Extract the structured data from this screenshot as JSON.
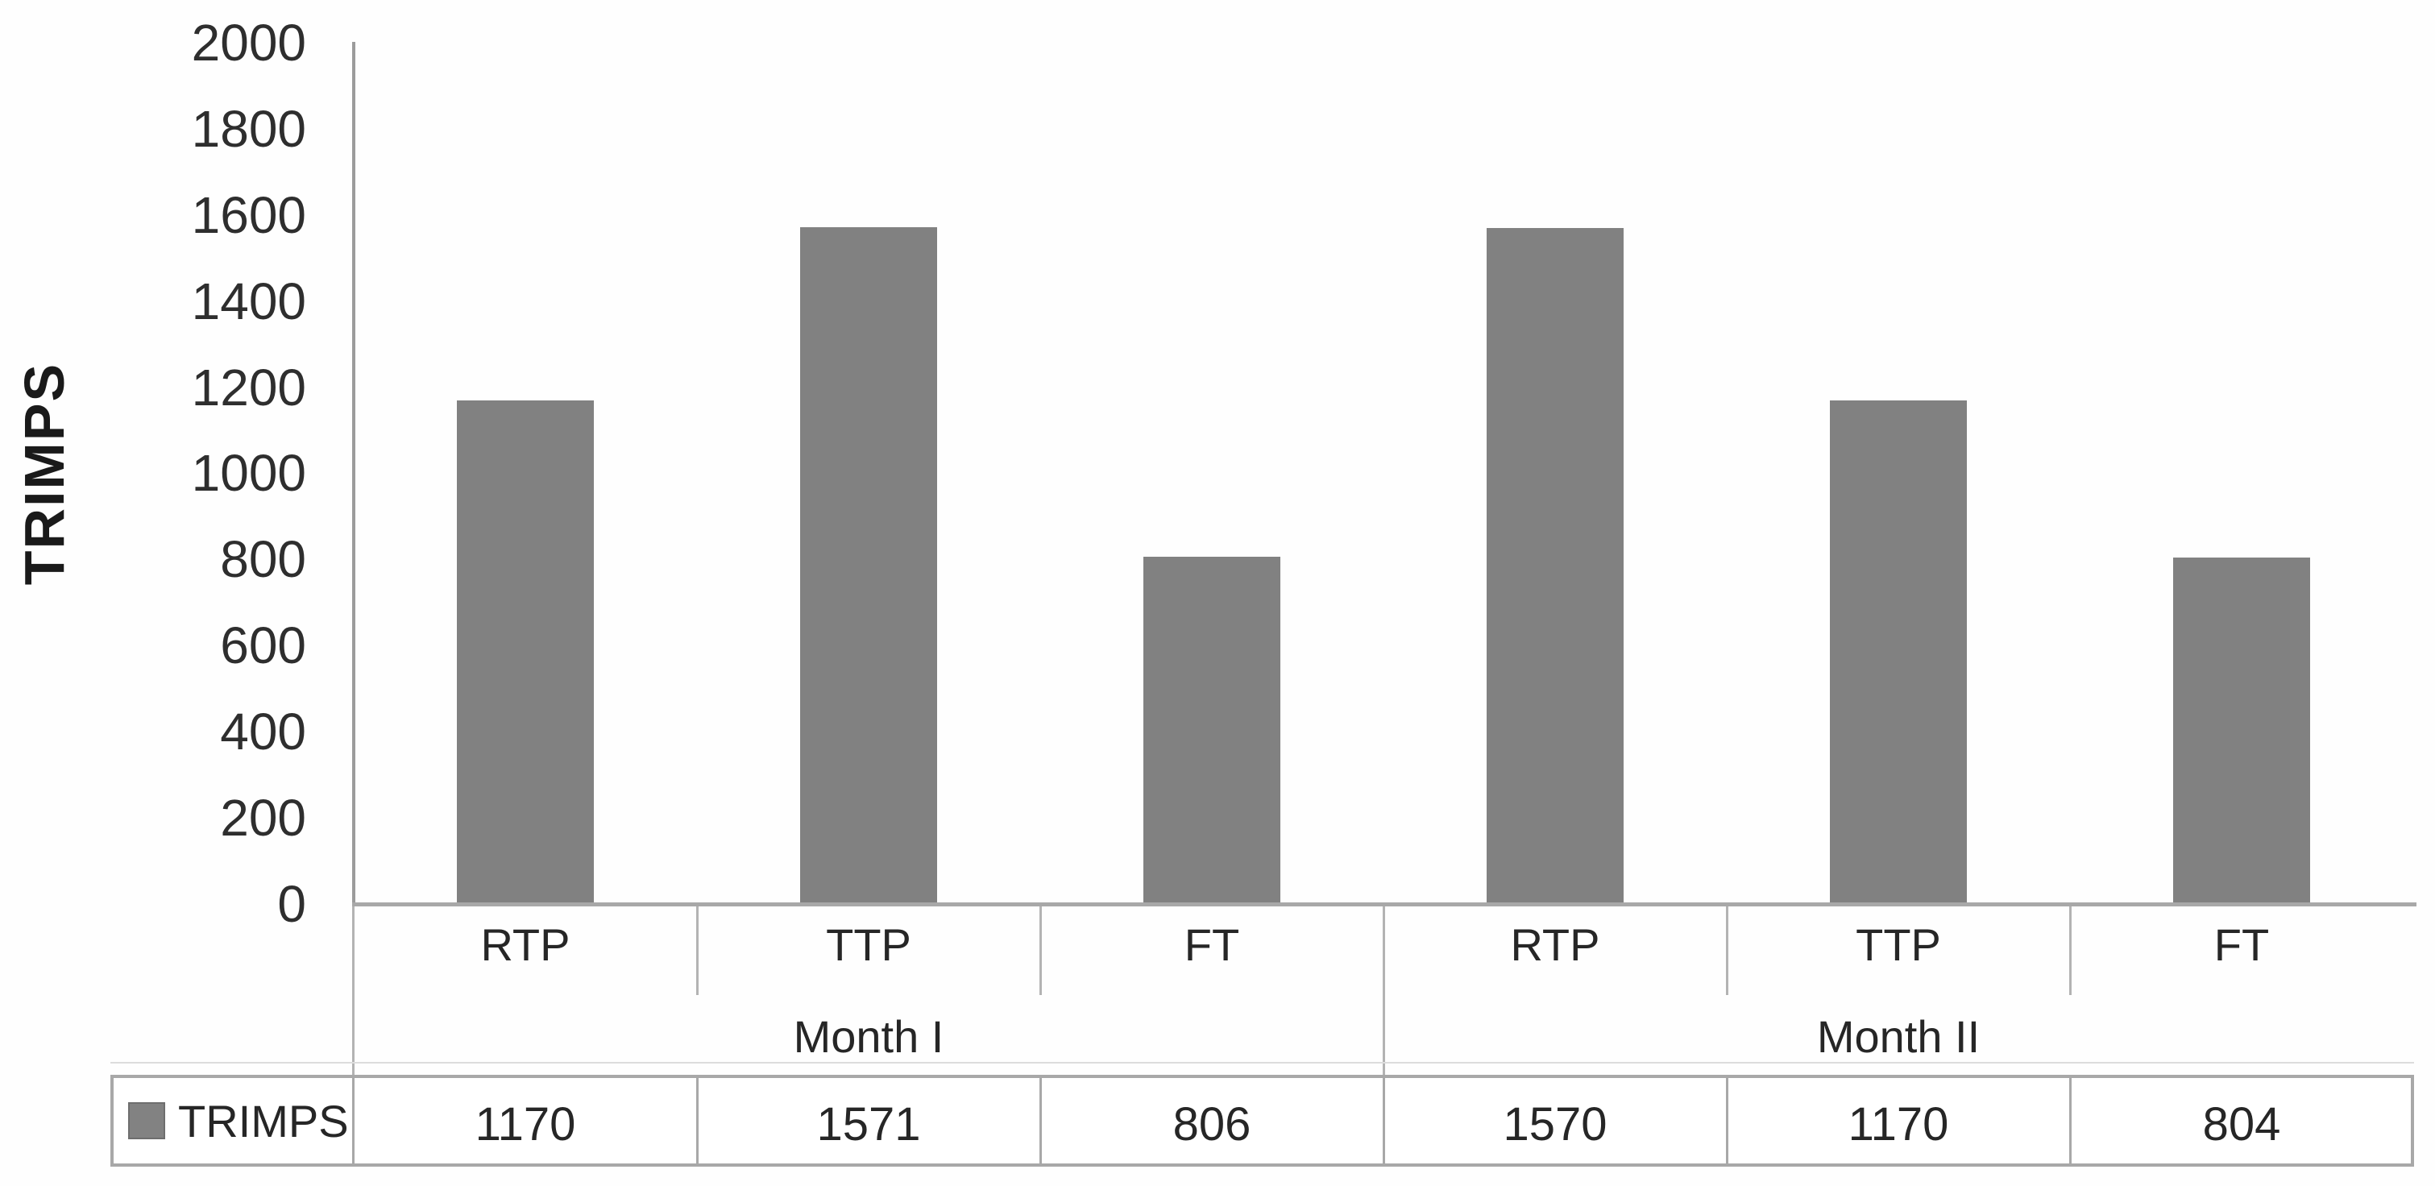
{
  "chart_data": {
    "type": "bar",
    "title": "",
    "ylabel": "TRIMPS",
    "xlabel": "",
    "ylim": [
      0,
      2000
    ],
    "y_tick_step": 200,
    "y_ticks": [
      "2000",
      "1800",
      "1600",
      "1400",
      "1200",
      "1000",
      "800",
      "600",
      "400",
      "200",
      "0"
    ],
    "grid": false,
    "legend_position": "bottom-data-table",
    "bar_color": "#818181",
    "axis_color": "#a8a8a8",
    "groups": [
      {
        "label": "Month I",
        "categories": [
          "RTP",
          "TTP",
          "FT"
        ]
      },
      {
        "label": "Month II",
        "categories": [
          "RTP",
          "TTP",
          "FT"
        ]
      }
    ],
    "categories": [
      "RTP",
      "TTP",
      "FT",
      "RTP",
      "TTP",
      "FT"
    ],
    "series": [
      {
        "name": "TRIMPS",
        "values": [
          1170,
          1571,
          806,
          1570,
          1170,
          804
        ]
      }
    ]
  },
  "legend": {
    "swatch_color": "#828282"
  }
}
